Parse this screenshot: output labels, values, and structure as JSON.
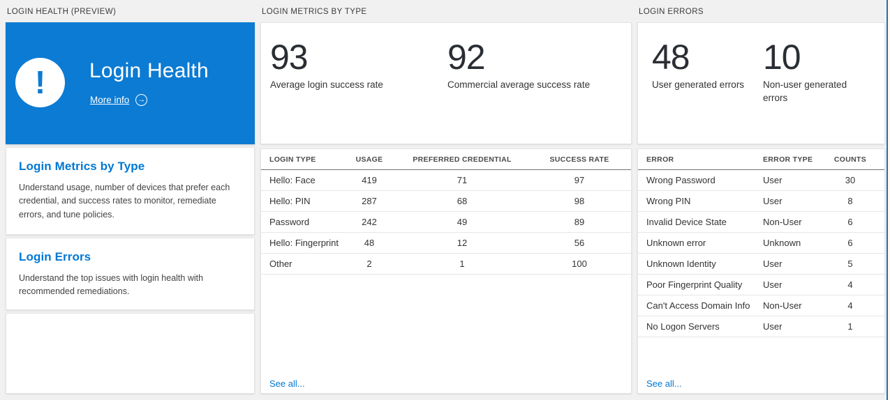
{
  "page": {
    "background": "#f1f1f1",
    "accent_blue": "#0c7bd3",
    "link_blue": "#0078d4"
  },
  "sections": {
    "login_health": {
      "header": "LOGIN HEALTH (PREVIEW)",
      "tile": {
        "title": "Login Health",
        "more_info_label": "More info",
        "alert_icon": "exclamation-circle-icon",
        "arrow_icon": "arrow-right-circle-icon",
        "alert_glyph": "!",
        "arrow_glyph": "→"
      },
      "cards": [
        {
          "title": "Login Metrics by Type",
          "description": "Understand usage, number of devices that prefer each credential, and success rates to monitor, remediate errors, and tune policies."
        },
        {
          "title": "Login Errors",
          "description": "Understand the top issues with login health with recommended remediations."
        }
      ]
    },
    "login_metrics": {
      "header": "LOGIN METRICS BY TYPE",
      "stats": [
        {
          "value": "93",
          "label": "Average login success rate"
        },
        {
          "value": "92",
          "label": "Commercial average success rate"
        }
      ],
      "table": {
        "columns": [
          "LOGIN TYPE",
          "USAGE",
          "PREFERRED CREDENTIAL",
          "SUCCESS RATE"
        ],
        "rows": [
          [
            "Hello: Face",
            "419",
            "71",
            "97"
          ],
          [
            "Hello: PIN",
            "287",
            "68",
            "98"
          ],
          [
            "Password",
            "242",
            "49",
            "89"
          ],
          [
            "Hello: Fingerprint",
            "48",
            "12",
            "56"
          ],
          [
            "Other",
            "2",
            "1",
            "100"
          ]
        ]
      },
      "see_all_label": "See all..."
    },
    "login_errors": {
      "header": "LOGIN ERRORS",
      "stats": [
        {
          "value": "48",
          "label": "User generated errors"
        },
        {
          "value": "10",
          "label": "Non-user generated errors"
        }
      ],
      "table": {
        "columns": [
          "ERROR",
          "ERROR TYPE",
          "COUNTS"
        ],
        "rows": [
          [
            "Wrong Password",
            "User",
            "30"
          ],
          [
            "Wrong PIN",
            "User",
            "8"
          ],
          [
            "Invalid Device State",
            "Non-User",
            "6"
          ],
          [
            "Unknown error",
            "Unknown",
            "6"
          ],
          [
            "Unknown Identity",
            "User",
            "5"
          ],
          [
            "Poor Fingerprint Quality",
            "User",
            "4"
          ],
          [
            "Can't Access Domain Info",
            "Non-User",
            "4"
          ],
          [
            "No Logon Servers",
            "User",
            "1"
          ]
        ]
      },
      "see_all_label": "See all..."
    }
  }
}
